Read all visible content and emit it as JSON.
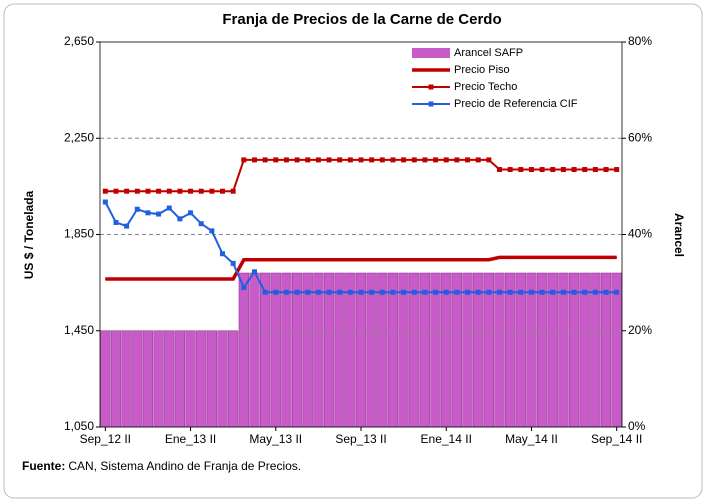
{
  "chart_data": {
    "type": "bar",
    "title": "Franja de Precios de la Carne de Cerdo",
    "y_label": "US $ / Tonelada",
    "y2_label": "Arancel",
    "note_label": "Fuente:",
    "note": "CAN, Sistema Andino de Franja de Precios.",
    "categories": [
      "Sep_12 II",
      null,
      null,
      null,
      null,
      null,
      null,
      null,
      "Ene_13 II",
      null,
      null,
      null,
      null,
      null,
      null,
      null,
      "May_13 II",
      null,
      null,
      null,
      null,
      null,
      null,
      null,
      "Sep_13 II",
      null,
      null,
      null,
      null,
      null,
      null,
      null,
      "Ene_14 II",
      null,
      null,
      null,
      null,
      null,
      null,
      null,
      "May_14 II",
      null,
      null,
      null,
      null,
      null,
      null,
      null,
      "Sep_14 II"
    ],
    "ylim": [
      1050,
      2650
    ],
    "yticks": [
      {
        "value": 1050,
        "label": "1,050"
      },
      {
        "value": 1450,
        "label": "1,450"
      },
      {
        "value": 1850,
        "label": "1,850"
      },
      {
        "value": 2250,
        "label": "2,250"
      },
      {
        "value": 2650,
        "label": "2,650"
      }
    ],
    "y2lim": [
      0,
      80
    ],
    "y2ticks": [
      {
        "value": 0,
        "label": "0%"
      },
      {
        "value": 20,
        "label": "20%"
      },
      {
        "value": 40,
        "label": "40%"
      },
      {
        "value": 60,
        "label": "60%"
      },
      {
        "value": 80,
        "label": "80%"
      }
    ],
    "grid": true,
    "legend": "upper right",
    "series": [
      {
        "name": "Arancel SAFP",
        "type": "bar",
        "axis": "y2",
        "color": "#c95bc9",
        "values": [
          20,
          20,
          20,
          20,
          20,
          20,
          20,
          20,
          20,
          20,
          20,
          20,
          20,
          32,
          32,
          32,
          32,
          32,
          32,
          32,
          32,
          32,
          32,
          32,
          32,
          32,
          32,
          32,
          32,
          32,
          32,
          32,
          32,
          32,
          32,
          32,
          32,
          32,
          32,
          32,
          32,
          32,
          32,
          32,
          32,
          32,
          32,
          32,
          32
        ]
      },
      {
        "name": "Precio Piso",
        "type": "line",
        "axis": "y",
        "color": "#c00000",
        "marker": false,
        "values": [
          1665,
          1665,
          1665,
          1665,
          1665,
          1665,
          1665,
          1665,
          1665,
          1665,
          1665,
          1665,
          1665,
          1745,
          1745,
          1745,
          1745,
          1745,
          1745,
          1745,
          1745,
          1745,
          1745,
          1745,
          1745,
          1745,
          1745,
          1745,
          1745,
          1745,
          1745,
          1745,
          1745,
          1745,
          1745,
          1745,
          1745,
          1755,
          1755,
          1755,
          1755,
          1755,
          1755,
          1755,
          1755,
          1755,
          1755,
          1755,
          1755
        ]
      },
      {
        "name": "Precio Techo",
        "type": "line",
        "axis": "y",
        "color": "#c00000",
        "marker": true,
        "values": [
          2030,
          2030,
          2030,
          2030,
          2030,
          2030,
          2030,
          2030,
          2030,
          2030,
          2030,
          2030,
          2030,
          2160,
          2160,
          2160,
          2160,
          2160,
          2160,
          2160,
          2160,
          2160,
          2160,
          2160,
          2160,
          2160,
          2160,
          2160,
          2160,
          2160,
          2160,
          2160,
          2160,
          2160,
          2160,
          2160,
          2160,
          2120,
          2120,
          2120,
          2120,
          2120,
          2120,
          2120,
          2120,
          2120,
          2120,
          2120,
          2120
        ]
      },
      {
        "name": "Precio de Referencia CIF",
        "type": "line",
        "axis": "y",
        "color": "#1f5fe0",
        "marker": true,
        "values": [
          1985,
          1900,
          1885,
          1955,
          1940,
          1935,
          1960,
          1915,
          1940,
          1895,
          1865,
          1770,
          1730,
          1630,
          1695,
          1610,
          1610,
          1610,
          1610,
          1610,
          1610,
          1610,
          1610,
          1610,
          1610,
          1610,
          1610,
          1610,
          1610,
          1610,
          1610,
          1610,
          1610,
          1610,
          1610,
          1610,
          1610,
          1610,
          1610,
          1610,
          1610,
          1610,
          1610,
          1610,
          1610,
          1610,
          1610,
          1610,
          1610
        ]
      }
    ]
  }
}
